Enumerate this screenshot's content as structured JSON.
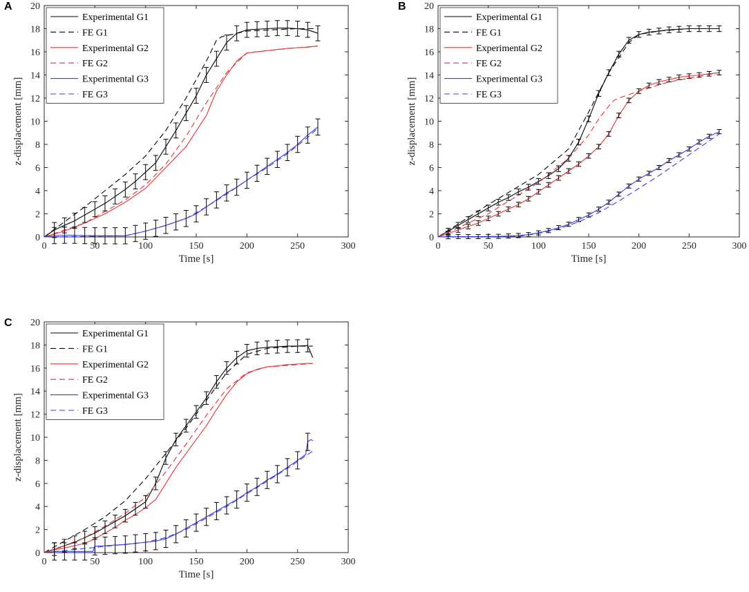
{
  "chart_data": [
    {
      "panel": "A",
      "type": "line",
      "xlabel": "Time [s]",
      "ylabel": "z-displacement [mm]",
      "xlim": [
        0,
        300
      ],
      "ylim": [
        0,
        20
      ],
      "xticks": [
        0,
        50,
        100,
        150,
        200,
        250,
        300
      ],
      "yticks": [
        0,
        2,
        4,
        6,
        8,
        10,
        12,
        14,
        16,
        18,
        20
      ],
      "legend": "top-left",
      "series": [
        {
          "name": "Experimental G1",
          "color": "#000000",
          "dash": "solid",
          "x": [
            0,
            10,
            20,
            30,
            40,
            50,
            60,
            70,
            80,
            90,
            100,
            110,
            120,
            130,
            140,
            150,
            160,
            170,
            180,
            190,
            200,
            210,
            220,
            230,
            240,
            250,
            260,
            270
          ],
          "y": [
            0,
            0.6,
            1.0,
            1.4,
            1.9,
            2.4,
            2.9,
            3.5,
            4.1,
            4.8,
            5.6,
            6.4,
            7.8,
            9.2,
            10.7,
            12.2,
            14.0,
            15.4,
            16.8,
            17.6,
            17.9,
            17.95,
            18.0,
            18.05,
            18.05,
            18.0,
            17.9,
            17.6
          ]
        },
        {
          "name": "FE G1",
          "color": "#000000",
          "dash": "dashed",
          "x": [
            0,
            20,
            40,
            60,
            80,
            100,
            120,
            140,
            160,
            170,
            175,
            200,
            250,
            270
          ],
          "y": [
            0,
            1.3,
            2.6,
            4.0,
            5.4,
            7.0,
            9.2,
            12.0,
            15.2,
            17.0,
            17.3,
            17.8,
            18.0,
            18.0
          ]
        },
        {
          "name": "Experimental G2",
          "color": "#e83030",
          "dash": "solid",
          "x": [
            0,
            20,
            40,
            60,
            80,
            100,
            120,
            140,
            160,
            170,
            180,
            190,
            200,
            220,
            240,
            260,
            270
          ],
          "y": [
            0,
            0.5,
            1.2,
            2.0,
            3.0,
            4.2,
            6.0,
            7.8,
            10.5,
            12.6,
            14.0,
            15.2,
            15.9,
            16.1,
            16.3,
            16.4,
            16.5
          ]
        },
        {
          "name": "FE G2",
          "color": "#e83030",
          "dash": "dashed",
          "x": [
            0,
            40,
            80,
            100,
            120,
            140,
            160,
            180,
            200,
            230,
            270
          ],
          "y": [
            0,
            1.2,
            3.2,
            4.5,
            6.3,
            8.7,
            11.6,
            14.2,
            15.9,
            16.2,
            16.5
          ]
        },
        {
          "name": "Experimental G3",
          "color": "#3a3ae8",
          "dash": "solid",
          "x": [
            0,
            10,
            20,
            30,
            40,
            50,
            60,
            70,
            80,
            90,
            100,
            110,
            120,
            130,
            140,
            150,
            160,
            170,
            180,
            190,
            200,
            210,
            220,
            230,
            240,
            250,
            260,
            270
          ],
          "y": [
            0,
            0.12,
            0.15,
            0.15,
            0.12,
            0.1,
            0.1,
            0.1,
            0.1,
            0.3,
            0.5,
            0.75,
            1.0,
            1.3,
            1.6,
            2.0,
            2.6,
            3.2,
            3.8,
            4.3,
            4.9,
            5.5,
            6.1,
            6.7,
            7.3,
            8.0,
            8.8,
            9.5
          ]
        },
        {
          "name": "FE G3",
          "color": "#3a3ae8",
          "dash": "dashed",
          "x": [
            0,
            80,
            100,
            120,
            140,
            160,
            180,
            200,
            220,
            240,
            260,
            270
          ],
          "y": [
            0,
            0.1,
            0.5,
            1.0,
            1.6,
            2.6,
            3.7,
            4.9,
            6.0,
            7.2,
            8.6,
            9.4
          ]
        }
      ],
      "errorbars": [
        {
          "series": "Experimental G1",
          "err": 0.65
        },
        {
          "series": "Experimental G3",
          "err": 0.7
        }
      ]
    },
    {
      "panel": "B",
      "type": "line",
      "xlabel": "Time [s]",
      "ylabel": "z-displacement [mm]",
      "xlim": [
        0,
        300
      ],
      "ylim": [
        0,
        20
      ],
      "xticks": [
        0,
        50,
        100,
        150,
        200,
        250,
        300
      ],
      "yticks": [
        0,
        2,
        4,
        6,
        8,
        10,
        12,
        14,
        16,
        18,
        20
      ],
      "legend": "top-left",
      "series": [
        {
          "name": "Experimental G1",
          "color": "#000000",
          "dash": "solid",
          "x": [
            0,
            10,
            20,
            30,
            40,
            50,
            60,
            70,
            80,
            90,
            100,
            110,
            120,
            130,
            140,
            150,
            160,
            170,
            180,
            190,
            200,
            210,
            220,
            230,
            240,
            250,
            260,
            270,
            280
          ],
          "y": [
            0,
            0.5,
            1.0,
            1.5,
            2.0,
            2.5,
            3.0,
            3.4,
            3.9,
            4.3,
            4.8,
            5.3,
            5.9,
            6.8,
            8.2,
            10.2,
            12.4,
            14.2,
            15.8,
            17.0,
            17.5,
            17.7,
            17.8,
            17.9,
            17.95,
            18.0,
            18.0,
            18.0,
            18.0
          ]
        },
        {
          "name": "FE G1",
          "color": "#000000",
          "dash": "dashed",
          "x": [
            0,
            50,
            100,
            130,
            150,
            170,
            190,
            200,
            220,
            250,
            280
          ],
          "y": [
            0,
            2.8,
            5.4,
            7.6,
            10.8,
            14.2,
            16.8,
            17.5,
            17.8,
            18.0,
            18.0
          ]
        },
        {
          "name": "Experimental G2",
          "color": "#e83030",
          "dash": "solid",
          "x": [
            0,
            10,
            20,
            30,
            40,
            50,
            60,
            70,
            80,
            90,
            100,
            110,
            120,
            130,
            140,
            150,
            160,
            170,
            180,
            190,
            200,
            210,
            220,
            230,
            240,
            250,
            260,
            270,
            280
          ],
          "y": [
            0,
            0.3,
            0.6,
            0.9,
            1.2,
            1.6,
            2.0,
            2.4,
            2.8,
            3.3,
            3.9,
            4.5,
            5.1,
            5.7,
            6.3,
            7.0,
            7.8,
            8.9,
            10.5,
            11.8,
            12.6,
            13.1,
            13.4,
            13.6,
            13.8,
            13.9,
            14.0,
            14.1,
            14.2
          ]
        },
        {
          "name": "FE G2",
          "color": "#e83030",
          "dash": "dashed",
          "x": [
            0,
            50,
            100,
            130,
            150,
            160,
            170,
            175,
            180,
            200,
            230,
            280
          ],
          "y": [
            0,
            2.0,
            4.7,
            6.8,
            8.8,
            10.2,
            11.3,
            11.8,
            12.0,
            12.6,
            13.4,
            14.2
          ]
        },
        {
          "name": "Experimental G3",
          "color": "#3a3ae8",
          "dash": "solid",
          "x": [
            0,
            10,
            20,
            30,
            40,
            50,
            60,
            70,
            80,
            90,
            100,
            110,
            120,
            130,
            140,
            150,
            160,
            170,
            180,
            190,
            200,
            210,
            220,
            230,
            240,
            250,
            260,
            270,
            280
          ],
          "y": [
            0,
            0.02,
            0.03,
            0.03,
            0.03,
            0.04,
            0.05,
            0.08,
            0.12,
            0.2,
            0.35,
            0.55,
            0.8,
            1.1,
            1.5,
            1.9,
            2.4,
            3.0,
            3.7,
            4.4,
            5.0,
            5.5,
            6.0,
            6.6,
            7.1,
            7.6,
            8.2,
            8.7,
            9.1
          ]
        },
        {
          "name": "FE G3",
          "color": "#3a3ae8",
          "dash": "dashed",
          "x": [
            0,
            80,
            100,
            120,
            140,
            160,
            180,
            200,
            220,
            240,
            260,
            280
          ],
          "y": [
            0,
            0.05,
            0.3,
            0.7,
            1.3,
            2.1,
            3.1,
            4.2,
            5.3,
            6.5,
            7.7,
            8.9
          ]
        }
      ],
      "errorbars": [
        {
          "series": "Experimental G1",
          "err": 0.25
        },
        {
          "series": "Experimental G2",
          "err": 0.2
        },
        {
          "series": "Experimental G3",
          "err": 0.18
        }
      ]
    },
    {
      "panel": "C",
      "type": "line",
      "xlabel": "Time [s]",
      "ylabel": "z-displacement [mm]",
      "xlim": [
        0,
        300
      ],
      "ylim": [
        0,
        20
      ],
      "xticks": [
        0,
        50,
        100,
        150,
        200,
        250,
        300
      ],
      "yticks": [
        0,
        2,
        4,
        6,
        8,
        10,
        12,
        14,
        16,
        18,
        20
      ],
      "legend": "top-left",
      "series": [
        {
          "name": "Experimental G1",
          "color": "#000000",
          "dash": "solid",
          "x": [
            0,
            10,
            20,
            30,
            40,
            50,
            60,
            70,
            80,
            90,
            100,
            110,
            120,
            130,
            140,
            150,
            160,
            170,
            180,
            190,
            200,
            210,
            220,
            230,
            240,
            250,
            260,
            265
          ],
          "y": [
            0,
            0.3,
            0.6,
            0.9,
            1.3,
            1.7,
            2.2,
            2.7,
            3.2,
            3.8,
            4.4,
            6.0,
            8.2,
            9.8,
            11.0,
            12.2,
            13.4,
            14.8,
            16.0,
            16.9,
            17.5,
            17.7,
            17.8,
            17.85,
            17.9,
            17.9,
            17.95,
            16.9
          ]
        },
        {
          "name": "FE G1",
          "color": "#000000",
          "dash": "dashed",
          "x": [
            0,
            20,
            40,
            60,
            80,
            100,
            120,
            140,
            160,
            180,
            200,
            220,
            250,
            265
          ],
          "y": [
            0,
            1.0,
            2.0,
            3.1,
            4.5,
            6.4,
            8.6,
            10.8,
            13.2,
            15.6,
            17.2,
            17.7,
            17.9,
            17.9
          ]
        },
        {
          "name": "Experimental G2",
          "color": "#e83030",
          "dash": "solid",
          "x": [
            0,
            10,
            20,
            30,
            40,
            50,
            60,
            70,
            80,
            90,
            100,
            110,
            120,
            130,
            140,
            150,
            160,
            170,
            180,
            190,
            200,
            210,
            220,
            230,
            240,
            250,
            260,
            265
          ],
          "y": [
            0,
            0.25,
            0.4,
            0.6,
            0.8,
            1.2,
            1.7,
            2.2,
            2.8,
            3.3,
            3.9,
            4.6,
            6.0,
            7.4,
            8.6,
            9.8,
            11.0,
            12.4,
            13.7,
            14.8,
            15.5,
            15.9,
            16.1,
            16.2,
            16.3,
            16.35,
            16.4,
            16.4
          ]
        },
        {
          "name": "FE G2",
          "color": "#e83030",
          "dash": "dashed",
          "x": [
            0,
            20,
            40,
            60,
            80,
            100,
            120,
            140,
            160,
            180,
            200,
            220,
            250,
            265
          ],
          "y": [
            0,
            0.6,
            1.3,
            2.3,
            3.4,
            4.8,
            7.0,
            9.4,
            11.9,
            14.2,
            15.6,
            16.1,
            16.3,
            16.4
          ]
        },
        {
          "name": "Experimental G3",
          "color": "#3a3ae8",
          "dash": "solid",
          "x": [
            0,
            10,
            20,
            30,
            40,
            48,
            50,
            60,
            70,
            80,
            90,
            100,
            110,
            120,
            130,
            140,
            150,
            160,
            170,
            180,
            190,
            200,
            210,
            220,
            230,
            240,
            250,
            258,
            260,
            263,
            265
          ],
          "y": [
            0,
            0.1,
            0.1,
            0.1,
            0.1,
            0.1,
            0.55,
            0.6,
            0.65,
            0.7,
            0.8,
            0.9,
            1.0,
            1.2,
            1.6,
            2.1,
            2.6,
            3.1,
            3.6,
            4.1,
            4.6,
            5.2,
            5.7,
            6.3,
            6.8,
            7.4,
            8.0,
            8.5,
            9.6,
            9.8,
            9.7
          ]
        },
        {
          "name": "FE G3",
          "color": "#3a3ae8",
          "dash": "dashed",
          "x": [
            0,
            100,
            120,
            140,
            160,
            180,
            200,
            220,
            240,
            260,
            265
          ],
          "y": [
            0,
            0.9,
            1.3,
            2.0,
            3.0,
            4.0,
            5.1,
            6.2,
            7.3,
            8.5,
            8.8
          ]
        }
      ],
      "errorbars": [
        {
          "series": "Experimental G1",
          "err": 0.55
        },
        {
          "series": "Experimental G3",
          "err": 0.75
        }
      ]
    }
  ]
}
